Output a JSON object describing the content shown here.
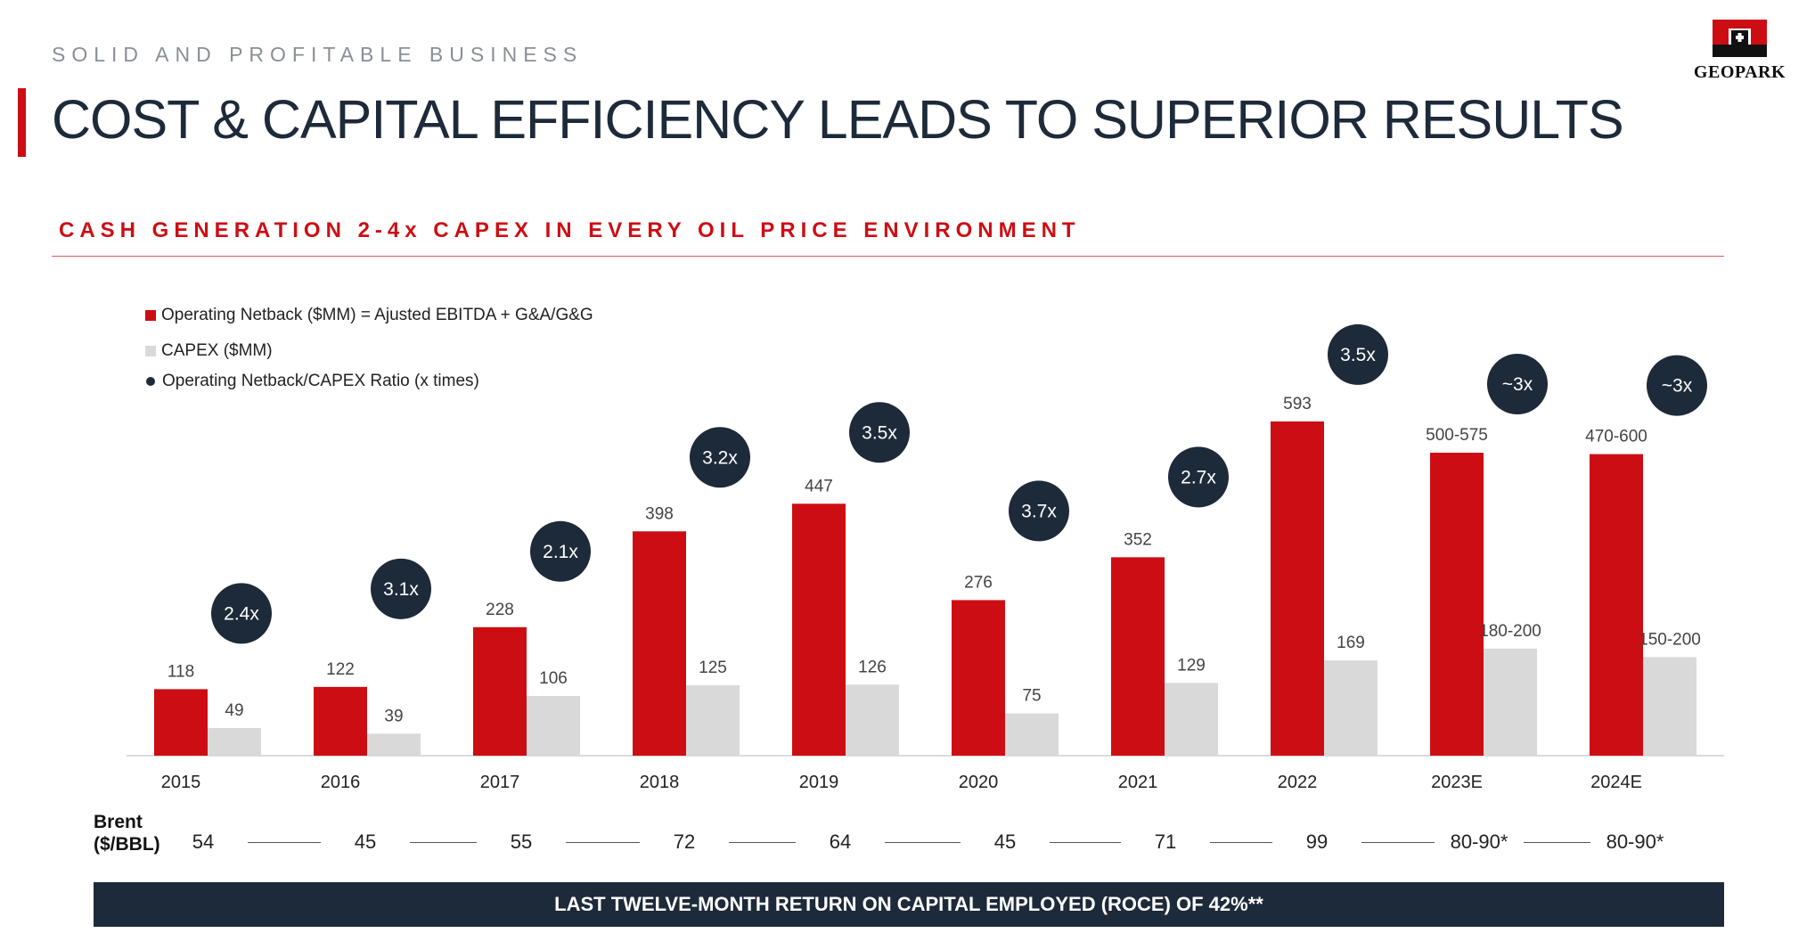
{
  "header": {
    "section_label": "SOLID AND PROFITABLE BUSINESS",
    "title": "COST & CAPITAL EFFICIENCY LEADS TO SUPERIOR RESULTS",
    "subtitle": "CASH GENERATION 2-4x CAPEX IN EVERY OIL PRICE ENVIRONMENT",
    "logo_text": "GEOPARK"
  },
  "colors": {
    "netback": "#cc0e14",
    "capex": "#d9d9d9",
    "ratio_bubble": "#1d2a3a",
    "accent": "#cc0e14"
  },
  "legend": [
    {
      "label": "Operating Netback ($MM) = Ajusted EBITDA + G&A/G&G"
    },
    {
      "label": "CAPEX ($MM)"
    },
    {
      "label": "Operating Netback/CAPEX Ratio (x times)"
    }
  ],
  "chart_data": {
    "type": "bar",
    "categories": [
      "2015",
      "2016",
      "2017",
      "2018",
      "2019",
      "2020",
      "2021",
      "2022",
      "2023E",
      "2024E"
    ],
    "series": [
      {
        "name": "Operating Netback ($MM) = Ajusted EBITDA + G&A/G&G",
        "values": [
          118,
          122,
          228,
          398,
          447,
          276,
          352,
          593,
          537.5,
          535
        ],
        "labels": [
          "118",
          "122",
          "228",
          "398",
          "447",
          "276",
          "352",
          "593",
          "500-575",
          "470-600"
        ]
      },
      {
        "name": "CAPEX ($MM)",
        "values": [
          49,
          39,
          106,
          125,
          126,
          75,
          129,
          169,
          190,
          175
        ],
        "labels": [
          "49",
          "39",
          "106",
          "125",
          "126",
          "75",
          "129",
          "169",
          "180-200",
          "150-200"
        ]
      }
    ],
    "ratios": [
      "2.4x",
      "3.1x",
      "2.1x",
      "3.2x",
      "3.5x",
      "3.7x",
      "2.7x",
      "3.5x",
      "~3x",
      "~3x"
    ],
    "title": "",
    "xlabel": "",
    "ylabel": "",
    "ylim": [
      0,
      650
    ],
    "grid": false,
    "legend_position": "top-left"
  },
  "brent": {
    "label_line1": "Brent",
    "label_line2": "($/BBL)",
    "values": [
      "54",
      "45",
      "55",
      "72",
      "64",
      "45",
      "71",
      "99",
      "80-90*",
      "80-90*"
    ]
  },
  "footer": {
    "text": "LAST TWELVE-MONTH RETURN ON CAPITAL EMPLOYED (ROCE) OF 42%**"
  }
}
